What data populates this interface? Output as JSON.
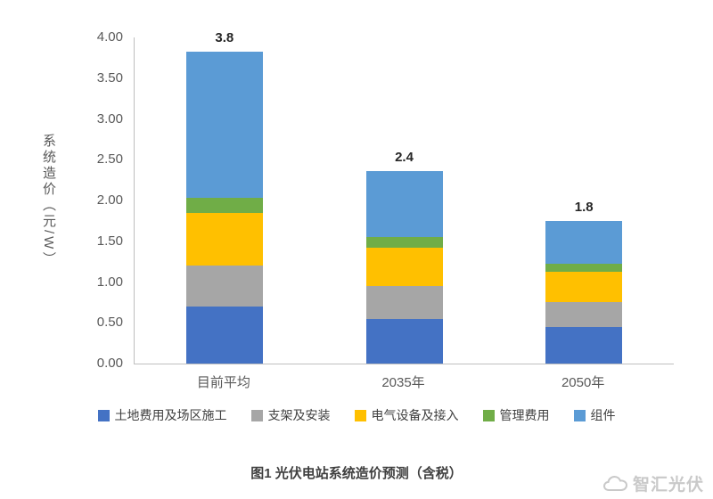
{
  "chart_data": {
    "type": "bar",
    "stacked": true,
    "title": "",
    "ylabel": "系统造价（元/W）",
    "xlabel": "",
    "ylim": [
      0,
      4.0
    ],
    "ytick_step": 0.5,
    "yticks": [
      "0.00",
      "0.50",
      "1.00",
      "1.50",
      "2.00",
      "2.50",
      "3.00",
      "3.50",
      "4.00"
    ],
    "grid": false,
    "legend_position": "bottom",
    "categories": [
      "目前平均",
      "2035年",
      "2050年"
    ],
    "series": [
      {
        "name": "土地费用及场区施工",
        "color": "#4472C4",
        "values": [
          0.7,
          0.55,
          0.45
        ]
      },
      {
        "name": "支架及安装",
        "color": "#A6A6A6",
        "values": [
          0.5,
          0.4,
          0.3
        ]
      },
      {
        "name": "电气设备及接入",
        "color": "#FFC000",
        "values": [
          0.65,
          0.47,
          0.38
        ]
      },
      {
        "name": "管理费用",
        "color": "#70AD47",
        "values": [
          0.18,
          0.13,
          0.09
        ]
      },
      {
        "name": "组件",
        "color": "#5B9BD5",
        "values": [
          1.8,
          0.81,
          0.53
        ]
      }
    ],
    "totals_labels": [
      "3.8",
      "2.4",
      "1.8"
    ]
  },
  "caption": "图1 光伏电站系统造价预测（含税）",
  "watermark": {
    "text": "智汇光伏"
  }
}
